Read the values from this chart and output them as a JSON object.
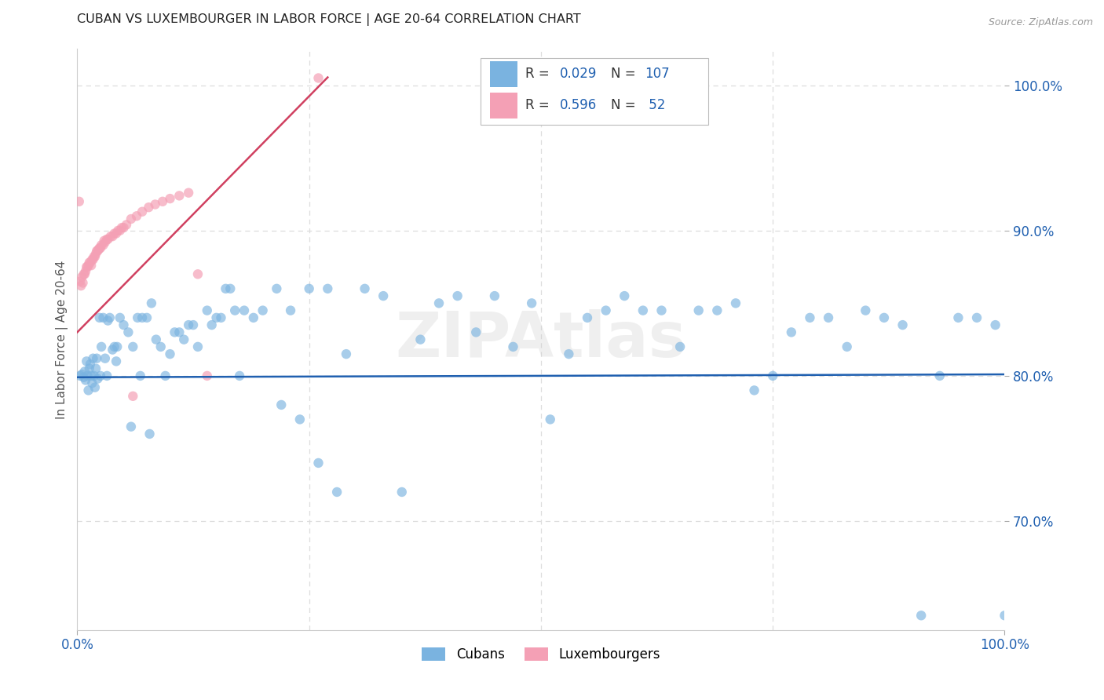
{
  "title": "CUBAN VS LUXEMBOURGER IN LABOR FORCE | AGE 20-64 CORRELATION CHART",
  "source": "Source: ZipAtlas.com",
  "ylabel": "In Labor Force | Age 20-64",
  "color_cubans": "#7ab3e0",
  "color_lux": "#f4a0b5",
  "color_trend_cubans": "#2060b0",
  "color_trend_lux": "#d04060",
  "color_blue": "#2060b0",
  "color_title": "#222222",
  "color_grid": "#dddddd",
  "background_color": "#ffffff",
  "xlim": [
    0.0,
    1.0
  ],
  "ylim": [
    0.625,
    1.025
  ],
  "yticks": [
    0.7,
    0.8,
    0.9,
    1.0
  ],
  "ytick_labels": [
    "70.0%",
    "80.0%",
    "90.0%",
    "100.0%"
  ],
  "xticks": [
    0.0,
    1.0
  ],
  "xtick_labels": [
    "0.0%",
    "100.0%"
  ],
  "watermark": "ZIPAtlas",
  "legend_box_labels": [
    "Cubans",
    "Luxembourgers"
  ],
  "r_cubans": "0.029",
  "n_cubans": "107",
  "r_lux": "0.596",
  "n_lux": "52",
  "cubans_x": [
    0.003,
    0.005,
    0.007,
    0.008,
    0.009,
    0.01,
    0.011,
    0.012,
    0.013,
    0.014,
    0.015,
    0.016,
    0.017,
    0.018,
    0.019,
    0.02,
    0.021,
    0.022,
    0.024,
    0.026,
    0.028,
    0.03,
    0.032,
    0.035,
    0.038,
    0.04,
    0.043,
    0.046,
    0.05,
    0.055,
    0.06,
    0.065,
    0.07,
    0.075,
    0.08,
    0.085,
    0.09,
    0.095,
    0.1,
    0.11,
    0.12,
    0.13,
    0.14,
    0.15,
    0.16,
    0.17,
    0.18,
    0.19,
    0.2,
    0.215,
    0.23,
    0.25,
    0.27,
    0.29,
    0.31,
    0.33,
    0.35,
    0.37,
    0.39,
    0.41,
    0.43,
    0.45,
    0.47,
    0.49,
    0.51,
    0.53,
    0.55,
    0.57,
    0.59,
    0.61,
    0.63,
    0.65,
    0.67,
    0.69,
    0.71,
    0.73,
    0.75,
    0.77,
    0.79,
    0.81,
    0.83,
    0.85,
    0.87,
    0.89,
    0.91,
    0.93,
    0.95,
    0.97,
    0.99,
    1.0,
    0.025,
    0.033,
    0.042,
    0.058,
    0.068,
    0.078,
    0.105,
    0.115,
    0.125,
    0.145,
    0.155,
    0.165,
    0.175,
    0.22,
    0.24,
    0.26,
    0.28
  ],
  "cubans_y": [
    0.8,
    0.801,
    0.799,
    0.803,
    0.797,
    0.81,
    0.8,
    0.79,
    0.805,
    0.808,
    0.8,
    0.795,
    0.812,
    0.8,
    0.792,
    0.805,
    0.812,
    0.798,
    0.84,
    0.82,
    0.84,
    0.812,
    0.8,
    0.84,
    0.818,
    0.82,
    0.82,
    0.84,
    0.835,
    0.83,
    0.82,
    0.84,
    0.84,
    0.84,
    0.85,
    0.825,
    0.82,
    0.8,
    0.815,
    0.83,
    0.835,
    0.82,
    0.845,
    0.84,
    0.86,
    0.845,
    0.845,
    0.84,
    0.845,
    0.86,
    0.845,
    0.86,
    0.86,
    0.815,
    0.86,
    0.855,
    0.72,
    0.825,
    0.85,
    0.855,
    0.83,
    0.855,
    0.82,
    0.85,
    0.77,
    0.815,
    0.84,
    0.845,
    0.855,
    0.845,
    0.845,
    0.82,
    0.845,
    0.845,
    0.85,
    0.79,
    0.8,
    0.83,
    0.84,
    0.84,
    0.82,
    0.845,
    0.84,
    0.835,
    0.635,
    0.8,
    0.84,
    0.84,
    0.835,
    0.635,
    0.8,
    0.838,
    0.81,
    0.765,
    0.8,
    0.76,
    0.83,
    0.825,
    0.835,
    0.835,
    0.84,
    0.86,
    0.8,
    0.78,
    0.77,
    0.74,
    0.72
  ],
  "lux_x": [
    0.003,
    0.005,
    0.007,
    0.008,
    0.009,
    0.01,
    0.011,
    0.012,
    0.013,
    0.014,
    0.015,
    0.016,
    0.017,
    0.018,
    0.019,
    0.02,
    0.022,
    0.024,
    0.026,
    0.028,
    0.03,
    0.033,
    0.036,
    0.04,
    0.044,
    0.048,
    0.053,
    0.058,
    0.064,
    0.07,
    0.077,
    0.084,
    0.092,
    0.1,
    0.11,
    0.12,
    0.13,
    0.14,
    0.002,
    0.004,
    0.006,
    0.021,
    0.023,
    0.025,
    0.029,
    0.032,
    0.038,
    0.042,
    0.046,
    0.05,
    0.06,
    0.26
  ],
  "lux_y": [
    0.865,
    0.868,
    0.87,
    0.87,
    0.872,
    0.875,
    0.875,
    0.876,
    0.878,
    0.878,
    0.876,
    0.88,
    0.88,
    0.882,
    0.882,
    0.884,
    0.886,
    0.888,
    0.89,
    0.89,
    0.892,
    0.894,
    0.896,
    0.898,
    0.9,
    0.902,
    0.904,
    0.908,
    0.91,
    0.913,
    0.916,
    0.918,
    0.92,
    0.922,
    0.924,
    0.926,
    0.87,
    0.8,
    0.92,
    0.862,
    0.864,
    0.886,
    0.887,
    0.888,
    0.893,
    0.894,
    0.896,
    0.898,
    0.9,
    0.902,
    0.786,
    1.005
  ]
}
